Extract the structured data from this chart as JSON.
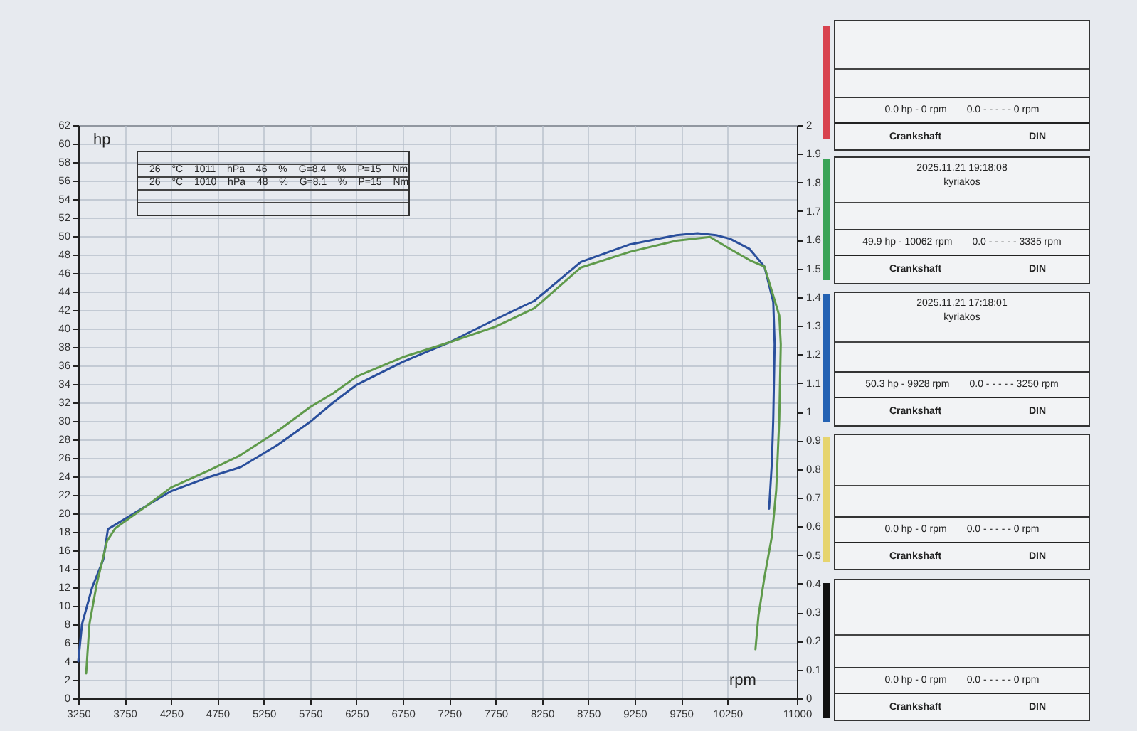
{
  "chart_data": {
    "type": "line",
    "xlabel": "rpm",
    "ylabel": "hp",
    "xlim": [
      3250,
      11000
    ],
    "xticks": [
      3250,
      3750,
      4250,
      4750,
      5250,
      5750,
      6250,
      6750,
      7250,
      7750,
      8250,
      8750,
      9250,
      9750,
      10250,
      11000
    ],
    "ylim": [
      0,
      62
    ],
    "yticks": [
      0,
      2,
      4,
      6,
      8,
      10,
      12,
      14,
      16,
      18,
      20,
      22,
      24,
      26,
      28,
      30,
      32,
      34,
      36,
      38,
      40,
      42,
      44,
      46,
      48,
      50,
      52,
      54,
      56,
      58,
      60,
      62
    ],
    "y2lim": [
      0,
      2
    ],
    "y2ticks": [
      0,
      0.1,
      0.2,
      0.3,
      0.4,
      0.5,
      0.6,
      0.7,
      0.8,
      0.9,
      1,
      1.1,
      1.2,
      1.3,
      1.4,
      1.5,
      1.6,
      1.7,
      1.8,
      1.9,
      2
    ],
    "grid": true,
    "series": [
      {
        "color": "#2a4f9c",
        "x": [
          3250,
          3290,
          3400,
          3520,
          3570,
          4000,
          4250,
          4650,
          5000,
          5400,
          5750,
          6000,
          6250,
          6750,
          7250,
          7750,
          8170,
          8670,
          9200,
          9700,
          9928,
          10130,
          10280,
          10490,
          10650,
          10745,
          10760,
          10745,
          10730,
          10700
        ],
        "values": [
          4.0,
          8.0,
          12.0,
          15.0,
          18.3,
          20.9,
          22.4,
          23.9,
          25.0,
          27.4,
          29.9,
          32.0,
          33.9,
          36.4,
          38.5,
          41.0,
          43.0,
          47.2,
          49.1,
          50.1,
          50.3,
          50.1,
          49.7,
          48.6,
          46.7,
          42.9,
          38.3,
          30.2,
          25.5,
          20.5
        ]
      },
      {
        "color": "#5f9a4b",
        "x": [
          3335,
          3370,
          3450,
          3560,
          3650,
          4000,
          4250,
          4650,
          5000,
          5400,
          5750,
          6000,
          6250,
          6750,
          7250,
          7750,
          8170,
          8670,
          9200,
          9700,
          10062,
          10280,
          10490,
          10650,
          10810,
          10826,
          10810,
          10777,
          10730,
          10650,
          10585,
          10553
        ],
        "values": [
          2.7,
          8.0,
          12.4,
          17.0,
          18.4,
          20.9,
          22.8,
          24.6,
          26.3,
          28.9,
          31.5,
          33.0,
          34.8,
          36.9,
          38.5,
          40.2,
          42.2,
          46.6,
          48.3,
          49.5,
          49.9,
          48.6,
          47.4,
          46.7,
          41.4,
          38.3,
          30.2,
          22.5,
          17.5,
          13.1,
          8.9,
          5.3
        ]
      }
    ],
    "annotations": [
      "26 °C 1011 hPa 46 % G=8.4 % P=15 Nm",
      "26 °C 1010 hPa 48 % G=8.1 % P=15 Nm",
      "0.0 hp - 0 rpm",
      "0.0 - - - - - 0 rpm",
      "Crankshaft",
      "DIN",
      "2025.11.21 19:18:08",
      "kyriakos",
      "49.9 hp - 10062 rpm",
      "0.0 - - - - - 3335 rpm",
      "Crankshaft",
      "DIN",
      "2025.11.21 17:18:01",
      "kyriakos",
      "50.3 hp - 9928 rpm",
      "0.0 - - - - - 3250 rpm",
      "Crankshaft",
      "DIN",
      "0.0 hp - 0 rpm",
      "0.0 - - - - - 0 rpm",
      "Crankshaft",
      "DIN",
      "0.0 hp - 0 rpm",
      "0.0 - - - - - 0 rpm",
      "Crankshaft",
      "DIN"
    ]
  }
}
